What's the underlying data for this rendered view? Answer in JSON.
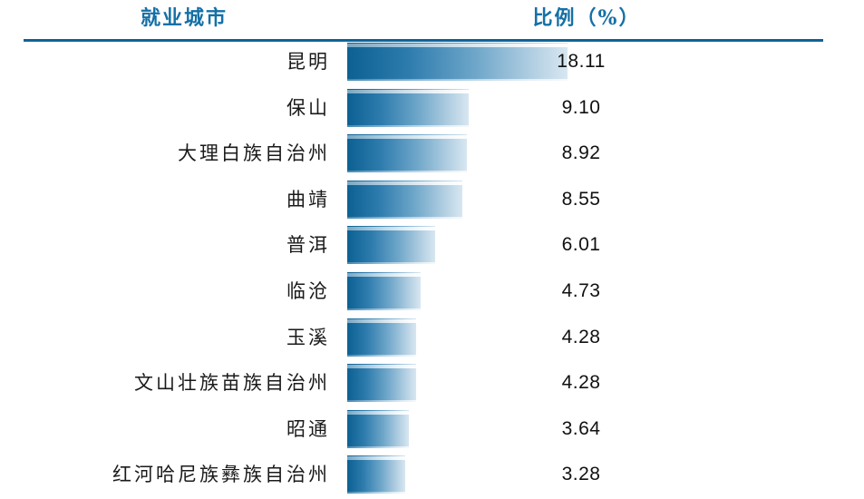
{
  "header": {
    "city_label": "就业城市",
    "ratio_label": "比例（%）"
  },
  "colors": {
    "header_text": "#1570a6",
    "rule": "#0e6397",
    "bar_dark": "#0c6092",
    "bar_light": "#d8e7f1",
    "label_text": "#1a1a1a",
    "value_text": "#111111"
  },
  "chart_data": {
    "type": "bar",
    "orientation": "horizontal",
    "title": "",
    "xlabel": "就业城市",
    "ylabel": "比例（%）",
    "grid": false,
    "legend": "none",
    "value_range": [
      0,
      18.11
    ],
    "categories": [
      "昆明",
      "保山",
      "大理白族自治州",
      "曲靖",
      "普洱",
      "临沧",
      "玉溪",
      "文山壮族苗族自治州",
      "昭通",
      "红河哈尼族彝族自治州"
    ],
    "values": [
      18.11,
      9.1,
      8.92,
      8.55,
      6.01,
      4.73,
      4.28,
      4.28,
      3.64,
      3.28
    ],
    "value_labels": [
      "18.11",
      "9.10",
      "8.92",
      "8.55",
      "6.01",
      "4.73",
      "4.28",
      "4.28",
      "3.64",
      "3.28"
    ]
  }
}
